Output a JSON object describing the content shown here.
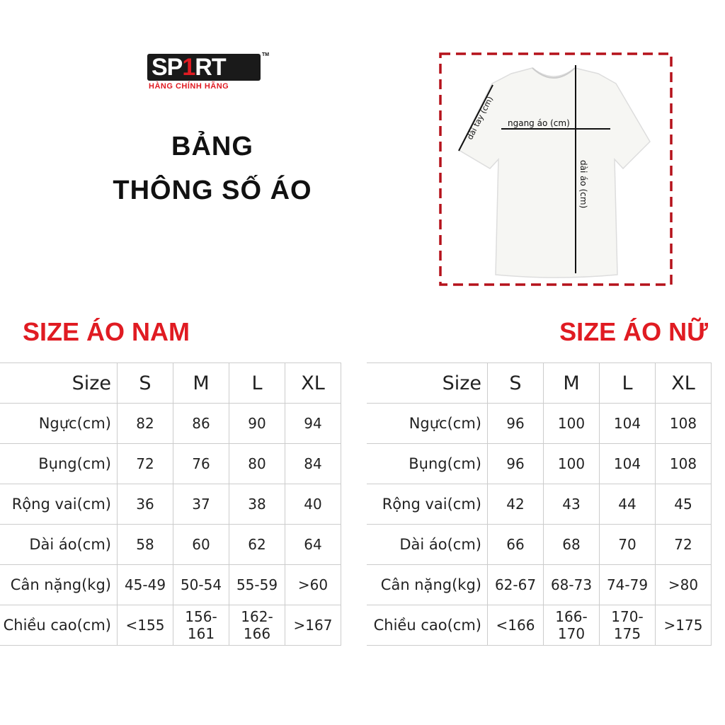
{
  "logo": {
    "main_pre": "SP",
    "main_one": "1",
    "main_post": "RT",
    "tm": "TM",
    "sub": "HÀNG CHÍNH HÃNG"
  },
  "title": {
    "line1": "BẢNG",
    "line2": "THÔNG SỐ ÁO"
  },
  "diagram": {
    "sleeve_label": "dài tay (cm)",
    "width_label": "ngang áo (cm)",
    "length_label": "dài áo (cm)",
    "border_color": "#b5121b"
  },
  "men": {
    "heading": "SIZE ÁO NAM",
    "header": [
      "Size",
      "S",
      "M",
      "L",
      "XL"
    ],
    "rows": [
      [
        "Ngực(cm)",
        "82",
        "86",
        "90",
        "94"
      ],
      [
        "Bụng(cm)",
        "72",
        "76",
        "80",
        "84"
      ],
      [
        "Rộng vai(cm)",
        "36",
        "37",
        "38",
        "40"
      ],
      [
        "Dài áo(cm)",
        "58",
        "60",
        "62",
        "64"
      ],
      [
        "Cân nặng(kg)",
        "45-49",
        "50-54",
        "55-59",
        ">60"
      ],
      [
        "Chiều cao(cm)",
        "<155",
        "156-161",
        "162-166",
        ">167"
      ]
    ]
  },
  "women": {
    "heading": "SIZE ÁO NỮ",
    "header": [
      "Size",
      "S",
      "M",
      "L",
      "XL"
    ],
    "rows": [
      [
        "Ngực(cm)",
        "96",
        "100",
        "104",
        "108"
      ],
      [
        "Bụng(cm)",
        "96",
        "100",
        "104",
        "108"
      ],
      [
        "Rộng vai(cm)",
        "42",
        "43",
        "44",
        "45"
      ],
      [
        "Dài áo(cm)",
        "66",
        "68",
        "70",
        "72"
      ],
      [
        "Cân nặng(kg)",
        "62-67",
        "68-73",
        "74-79",
        ">80"
      ],
      [
        "Chiều cao(cm)",
        "<166",
        "166-170",
        "170-175",
        ">175"
      ]
    ]
  },
  "colors": {
    "accent": "#e01b22",
    "grid": "#cccccc"
  }
}
